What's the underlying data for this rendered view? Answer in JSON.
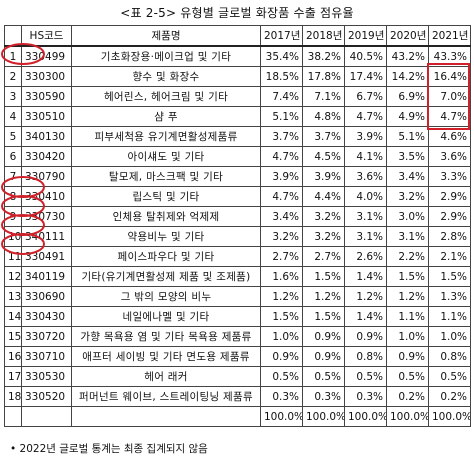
{
  "title": "<표 2-5> 유형별 글로벌 화장품 수출 점유율",
  "columns": [
    "",
    "HS코드",
    "제품명",
    "2017년",
    "2018년",
    "2019년",
    "2020년",
    "2021년"
  ],
  "rows": [
    {
      "no": "1",
      "code": "330499",
      "name": "기초화장용·메이크업 및 기타",
      "v": [
        "35.4%",
        "38.2%",
        "40.5%",
        "43.2%",
        "43.3%"
      ]
    },
    {
      "no": "2",
      "code": "330300",
      "name": "향수 및 화장수",
      "v": [
        "18.5%",
        "17.8%",
        "17.4%",
        "14.2%",
        "16.4%"
      ]
    },
    {
      "no": "3",
      "code": "330590",
      "name": "헤어린스, 헤어크림 및 기타",
      "v": [
        "7.4%",
        "7.1%",
        "6.7%",
        "6.9%",
        "7.0%"
      ]
    },
    {
      "no": "4",
      "code": "330510",
      "name": "샴 푸",
      "v": [
        "5.1%",
        "4.8%",
        "4.7%",
        "4.9%",
        "4.7%"
      ]
    },
    {
      "no": "5",
      "code": "340130",
      "name": "피부세척용 유기계면활성제품류",
      "v": [
        "3.7%",
        "3.7%",
        "3.9%",
        "5.1%",
        "4.6%"
      ]
    },
    {
      "no": "6",
      "code": "330420",
      "name": "아이섀도 및 기타",
      "v": [
        "4.7%",
        "4.5%",
        "4.1%",
        "3.5%",
        "3.6%"
      ]
    },
    {
      "no": "7",
      "code": "330790",
      "name": "탈모제, 마스크팩 및 기타",
      "v": [
        "3.9%",
        "3.9%",
        "3.6%",
        "3.4%",
        "3.3%"
      ]
    },
    {
      "no": "8",
      "code": "330410",
      "name": "립스틱 및 기타",
      "v": [
        "4.7%",
        "4.4%",
        "4.0%",
        "3.2%",
        "2.9%"
      ]
    },
    {
      "no": "9",
      "code": "330730",
      "name": "인체용 탈취제와 억제제",
      "v": [
        "3.4%",
        "3.2%",
        "3.1%",
        "3.0%",
        "2.9%"
      ]
    },
    {
      "no": "10",
      "code": "340111",
      "name": "약용비누 및 기타",
      "v": [
        "3.2%",
        "3.2%",
        "3.1%",
        "3.1%",
        "2.8%"
      ]
    },
    {
      "no": "11",
      "code": "330491",
      "name": "페이스파우다 및 기타",
      "v": [
        "2.7%",
        "2.7%",
        "2.6%",
        "2.2%",
        "2.1%"
      ]
    },
    {
      "no": "12",
      "code": "340119",
      "name": "기타(유기계면활성제 제품 및 조제품)",
      "v": [
        "1.6%",
        "1.5%",
        "1.4%",
        "1.5%",
        "1.5%"
      ]
    },
    {
      "no": "13",
      "code": "330690",
      "name": "그 밖의 모양의 비누",
      "v": [
        "1.2%",
        "1.2%",
        "1.2%",
        "1.2%",
        "1.3%"
      ]
    },
    {
      "no": "14",
      "code": "330430",
      "name": "네일에나멜 및 기타",
      "v": [
        "1.5%",
        "1.5%",
        "1.4%",
        "1.1%",
        "1.1%"
      ]
    },
    {
      "no": "15",
      "code": "330720",
      "name": "가향 목욕용 염 및 기타 목욕용 제품류",
      "v": [
        "1.0%",
        "0.9%",
        "0.9%",
        "1.0%",
        "1.0%"
      ]
    },
    {
      "no": "16",
      "code": "330710",
      "name": "애프터 세이빙 및 기타 면도용 제품류",
      "v": [
        "0.9%",
        "0.9%",
        "0.8%",
        "0.9%",
        "0.8%"
      ]
    },
    {
      "no": "17",
      "code": "330530",
      "name": "헤어 래커",
      "v": [
        "0.5%",
        "0.5%",
        "0.5%",
        "0.5%",
        "0.5%"
      ]
    },
    {
      "no": "18",
      "code": "330520",
      "name": "퍼머넌트 웨이브, 스트레이팅닝 제품류",
      "v": [
        "0.3%",
        "0.3%",
        "0.3%",
        "0.2%",
        "0.2%"
      ]
    },
    {
      "no": "",
      "code": "",
      "name": "",
      "v": [
        "100.0%",
        "100.0%",
        "100.0%",
        "100.0%",
        "100.0%"
      ]
    }
  ],
  "note": "• 2022년 글로벌 통계는 최종 집계되지 않음",
  "annotation_color": "#d0202a"
}
